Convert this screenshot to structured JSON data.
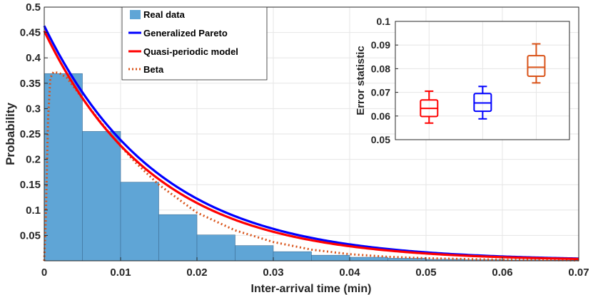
{
  "chart_data": [
    {
      "type": "histogram",
      "xlabel": "Inter-arrival time (min)",
      "ylabel": "Probability",
      "xlim": [
        0,
        0.07
      ],
      "ylim": [
        0,
        0.5
      ],
      "xticks": [
        "0",
        "0.01",
        "0.02",
        "0.03",
        "0.04",
        "0.05",
        "0.06",
        "0.07"
      ],
      "yticks": [
        "0.05",
        "0.1",
        "0.15",
        "0.2",
        "0.25",
        "0.3",
        "0.35",
        "0.4",
        "0.45",
        "0.5"
      ],
      "xtick_values": [
        0,
        0.01,
        0.02,
        0.03,
        0.04,
        0.05,
        0.06,
        0.07
      ],
      "ytick_values": [
        0.05,
        0.1,
        0.15,
        0.2,
        0.25,
        0.3,
        0.35,
        0.4,
        0.45,
        0.5
      ],
      "grid": true,
      "legend_position": "top-center",
      "bins": {
        "edges": [
          0,
          0.005,
          0.01,
          0.015,
          0.02,
          0.025,
          0.03,
          0.035,
          0.04,
          0.045,
          0.05,
          0.055,
          0.06,
          0.065,
          0.07
        ],
        "values": [
          0.369,
          0.255,
          0.155,
          0.091,
          0.051,
          0.03,
          0.018,
          0.011,
          0.007,
          0.005,
          0.003,
          0.002,
          0.0015,
          0.001
        ],
        "name": "Real data",
        "color": "#5fa5d6"
      },
      "series": [
        {
          "name": "Generalized Pareto",
          "color": "#0000ff",
          "style": "solid",
          "model": "exp",
          "a": 0.463,
          "k": 66.5
        },
        {
          "name": "Quasi-periodic model",
          "color": "#ff0000",
          "style": "solid",
          "model": "exp",
          "a": 0.453,
          "k": 69
        },
        {
          "name": "Beta",
          "color": "#d95319",
          "style": "dotted",
          "model": "beta",
          "points": [
            [
              0,
              0
            ],
            [
              0.0002,
              0.08
            ],
            [
              0.0005,
              0.28
            ],
            [
              0.0008,
              0.36
            ],
            [
              0.0012,
              0.372
            ],
            [
              0.002,
              0.37
            ],
            [
              0.003,
              0.36
            ],
            [
              0.004,
              0.34
            ],
            [
              0.006,
              0.3
            ],
            [
              0.008,
              0.262
            ],
            [
              0.01,
              0.226
            ],
            [
              0.012,
              0.193
            ],
            [
              0.015,
              0.15
            ],
            [
              0.02,
              0.095
            ],
            [
              0.025,
              0.06
            ],
            [
              0.03,
              0.037
            ],
            [
              0.035,
              0.022
            ],
            [
              0.04,
              0.013
            ],
            [
              0.045,
              0.008
            ],
            [
              0.05,
              0.005
            ],
            [
              0.06,
              0.002
            ],
            [
              0.07,
              0.001
            ]
          ]
        }
      ]
    },
    {
      "type": "boxplot",
      "ylabel": "Error statistic",
      "ylim": [
        0.05,
        0.1
      ],
      "yticks": [
        "0.05",
        "0.06",
        "0.07",
        "0.08",
        "0.09",
        "0.1"
      ],
      "ytick_values": [
        0.05,
        0.06,
        0.07,
        0.08,
        0.09,
        0.1
      ],
      "grid": true,
      "boxes": [
        {
          "name": "Quasi-periodic model",
          "color": "#ff0000",
          "min": 0.057,
          "q1": 0.0598,
          "median": 0.0632,
          "q3": 0.0668,
          "max": 0.0705
        },
        {
          "name": "Generalized Pareto",
          "color": "#0000ff",
          "min": 0.0588,
          "q1": 0.062,
          "median": 0.0655,
          "q3": 0.0695,
          "max": 0.0725
        },
        {
          "name": "Beta",
          "color": "#d95319",
          "min": 0.074,
          "q1": 0.0768,
          "median": 0.0806,
          "q3": 0.0855,
          "max": 0.0905
        }
      ]
    }
  ]
}
